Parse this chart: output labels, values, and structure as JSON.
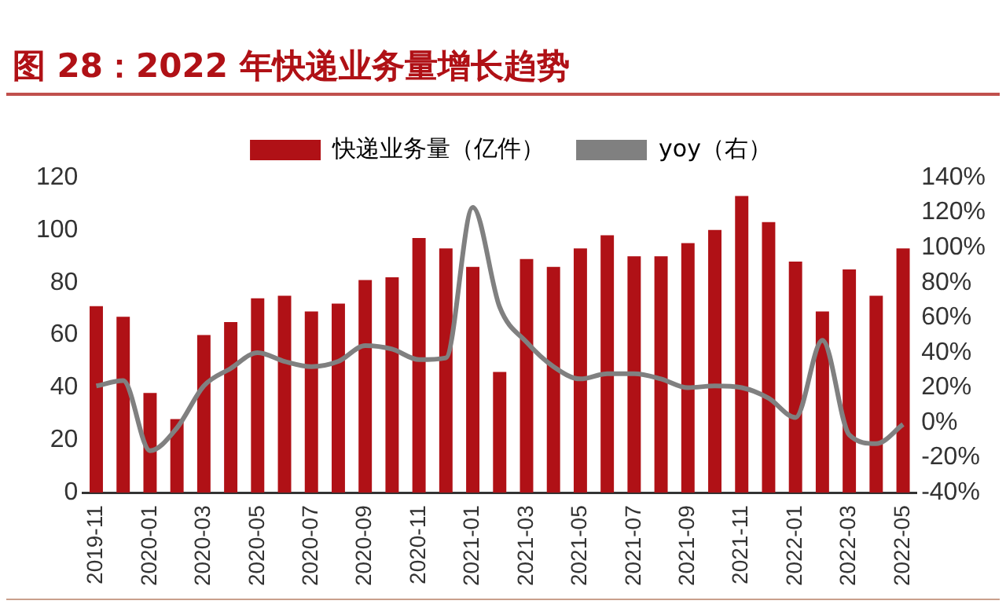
{
  "chart_data": {
    "type": "bar",
    "title": "图 28：2022 年快递业务量增长趋势",
    "categories": [
      "2019-11",
      null,
      "2020-01",
      null,
      "2020-03",
      null,
      "2020-05",
      null,
      "2020-07",
      null,
      "2020-09",
      null,
      "2020-11",
      null,
      "2021-01",
      null,
      "2021-03",
      null,
      "2021-05",
      null,
      "2021-07",
      null,
      "2021-09",
      null,
      "2021-11",
      null,
      "2022-01",
      null,
      "2022-03",
      null,
      "2022-05"
    ],
    "series": [
      {
        "name": "快递业务量（亿件）",
        "color": "#b01116",
        "values": [
          71,
          67,
          38,
          28,
          60,
          65,
          74,
          75,
          69,
          72,
          81,
          82,
          97,
          93,
          86,
          46,
          89,
          86,
          93,
          98,
          90,
          90,
          95,
          100,
          113,
          103,
          88,
          69,
          85,
          75,
          93
        ]
      },
      {
        "name": "yoy（右）",
        "type": "line",
        "axis": "y2",
        "color": "#808080",
        "values": [
          21,
          24,
          -16,
          -3,
          21,
          31,
          40,
          35,
          32,
          35,
          44,
          42,
          36,
          37,
          123,
          66,
          46,
          32,
          25,
          28,
          28,
          25,
          20,
          21,
          20,
          14,
          3,
          47,
          -7,
          -12,
          -1
        ]
      }
    ],
    "ylim": [
      0,
      120
    ],
    "yticks": [
      0,
      20,
      40,
      60,
      80,
      100,
      120
    ],
    "y2lim": [
      -40,
      140
    ],
    "y2ticks": [
      {
        "value": -40,
        "label": "-40%"
      },
      {
        "value": -20,
        "label": "-20%"
      },
      {
        "value": 0,
        "label": "0%"
      },
      {
        "value": 20,
        "label": "20%"
      },
      {
        "value": 40,
        "label": "40%"
      },
      {
        "value": 60,
        "label": "60%"
      },
      {
        "value": 80,
        "label": "80%"
      },
      {
        "value": 100,
        "label": "100%"
      },
      {
        "value": 120,
        "label": "120%"
      },
      {
        "value": 140,
        "label": "140%"
      }
    ],
    "grid": false,
    "legend": "top",
    "marker": "none"
  }
}
